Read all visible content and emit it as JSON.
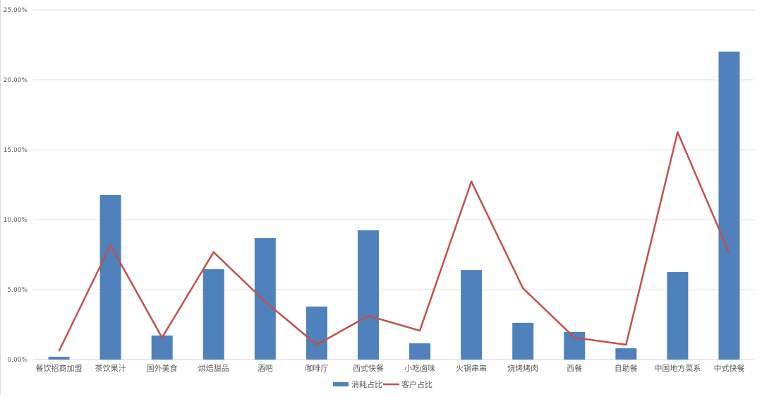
{
  "chart_data": {
    "type": "bar+line",
    "title": "",
    "xlabel": "",
    "ylabel": "",
    "ylim": [
      0,
      25
    ],
    "yticks": [
      "0.00%",
      "5.00%",
      "10.00%",
      "15.00%",
      "20.00%",
      "25.00%"
    ],
    "grid": true,
    "legend_position": "bottom",
    "categories": [
      "餐饮招商加盟",
      "茶饮果汁",
      "国外美食",
      "烘焙甜品",
      "酒吧",
      "咖啡厅",
      "西式快餐",
      "小吃卤味",
      "火锅串串",
      "烧烤烤肉",
      "西餐",
      "自助餐",
      "中国地方菜系",
      "中式快餐"
    ],
    "series": [
      {
        "name": "消耗占比",
        "type": "bar",
        "color": "#4F81BD",
        "values": [
          0.2,
          11.77,
          1.72,
          6.46,
          8.69,
          3.79,
          9.24,
          1.16,
          6.41,
          2.63,
          1.97,
          0.81,
          6.26,
          22.02
        ]
      },
      {
        "name": "客户占比",
        "type": "line",
        "color": "#C0504D",
        "values": [
          0.6,
          8.18,
          1.57,
          7.68,
          4.14,
          1.06,
          3.13,
          2.07,
          12.73,
          5.1,
          1.57,
          1.06,
          16.26,
          7.63
        ]
      }
    ]
  }
}
